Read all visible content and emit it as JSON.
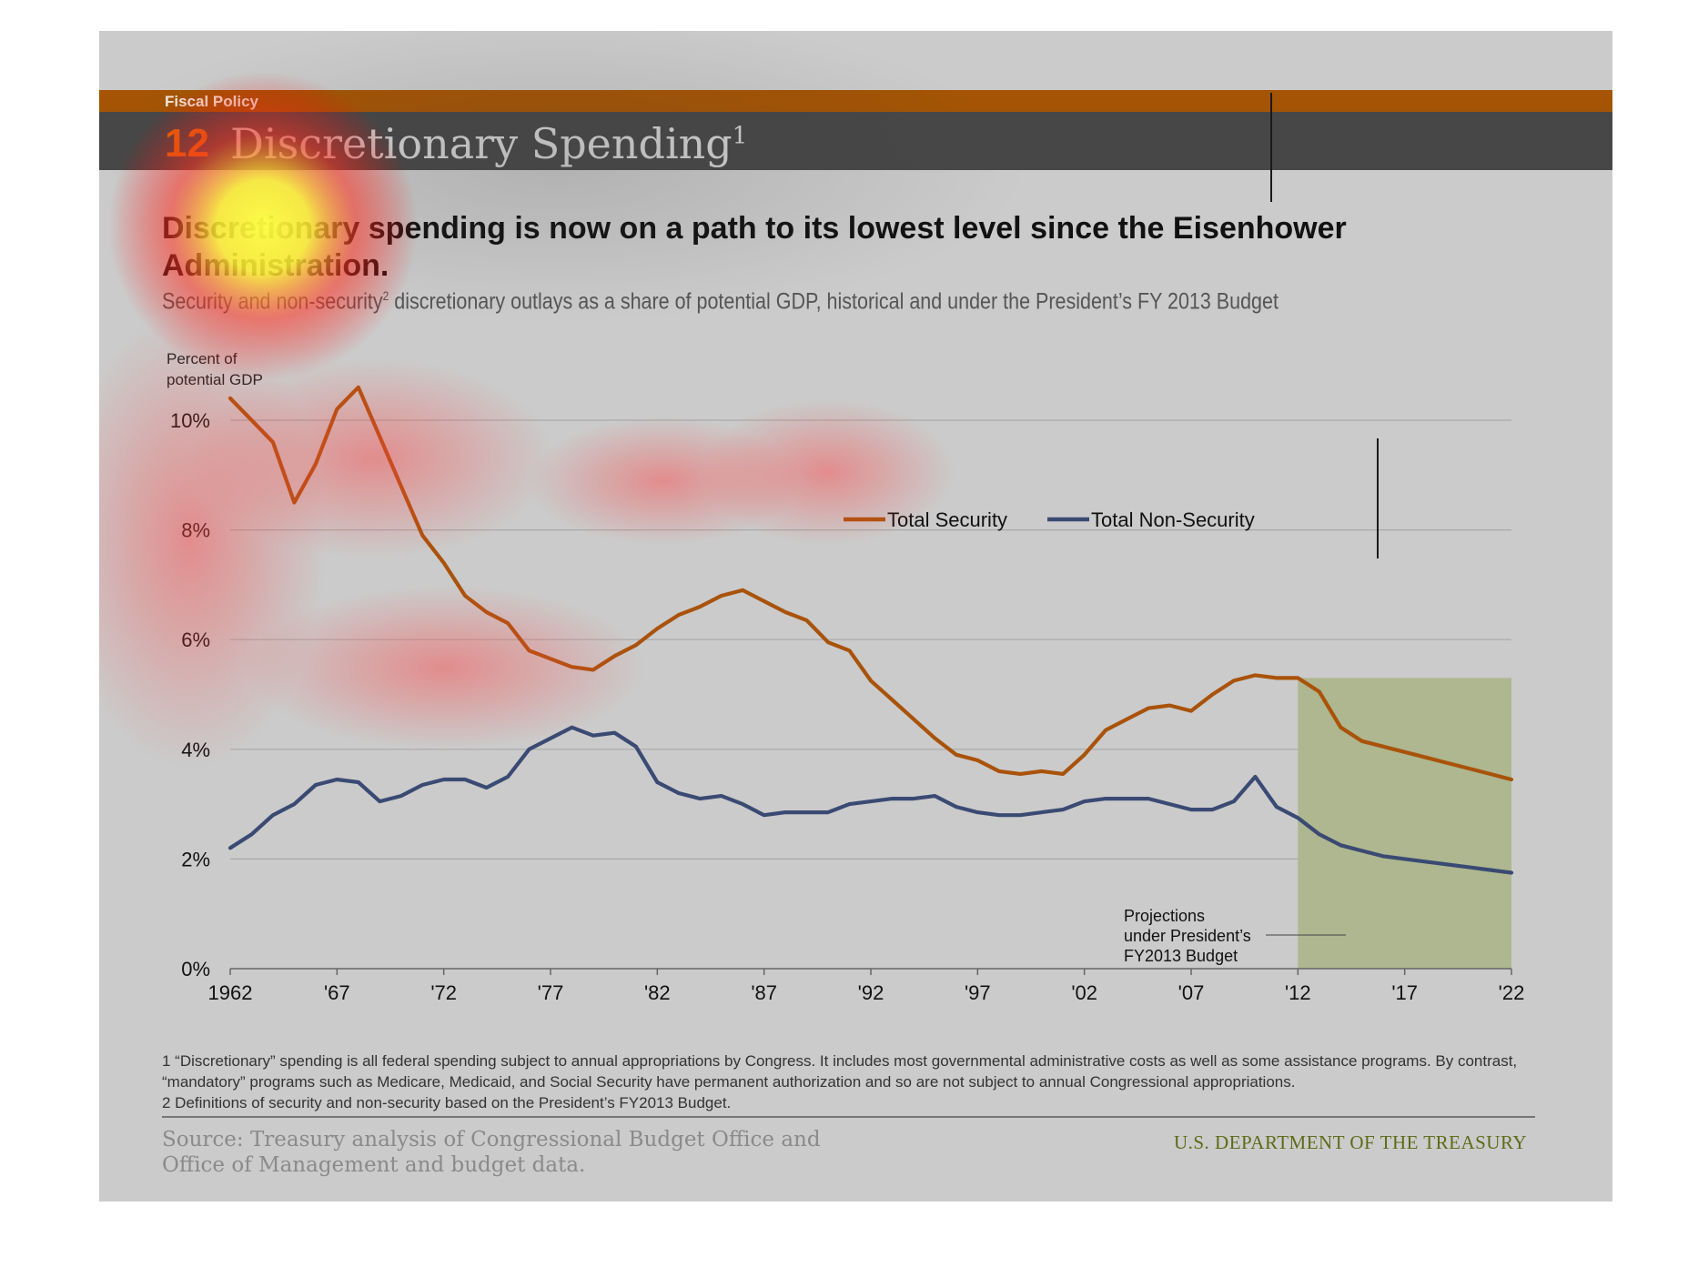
{
  "header": {
    "category": "Fiscal Policy",
    "chart_number": "12",
    "title": "Discretionary Spending",
    "title_footnote_mark": "1"
  },
  "headline": "Discretionary spending is now on a path to its lowest level since the Eisenhower Administration.",
  "subhead": {
    "before": "Security and non-security",
    "mark": "2",
    "after": " discretionary outlays as a share of potential GDP, historical and under the President’s FY 2013 Budget"
  },
  "footnotes": [
    "1 “Discretionary” spending is all federal spending subject to annual appropriations by Congress. It includes most governmental administrative costs as well as some assistance programs. By contrast, “mandatory” programs such as Medicare, Medicaid, and Social Security have permanent authorization and so are not subject to annual Congressional appropriations.",
    "2 Definitions of security and non-security based on the President’s FY2013 Budget."
  ],
  "source": "Source: Treasury analysis of Congressional Budget Office and Office of Management and budget data.",
  "agency": "U.S. DEPARTMENT OF THE TREASURY",
  "colors": {
    "security": "#a9530a",
    "non_security": "#3a4a73",
    "projection_shade": "#aeb78f",
    "orange_bar": "#a45404",
    "title_bar": "#474747"
  },
  "chart_data": {
    "type": "line",
    "ylabel": "Percent of\npotential GDP",
    "ylim": [
      0,
      10
    ],
    "xlim": [
      1962,
      2022
    ],
    "yticks": [
      0,
      2,
      4,
      6,
      8,
      10
    ],
    "ytick_labels": [
      "0%",
      "2%",
      "4%",
      "6%",
      "8%",
      "10%"
    ],
    "xticks": [
      1962,
      1967,
      1972,
      1977,
      1982,
      1987,
      1992,
      1997,
      2002,
      2007,
      2012,
      2017,
      2022
    ],
    "xtick_labels": [
      "1962",
      "'67",
      "'72",
      "'77",
      "'82",
      "'87",
      "'92",
      "'97",
      "'02",
      "'07",
      "'12",
      "'17",
      "'22"
    ],
    "grid": true,
    "legend_position": "top-center",
    "projection": {
      "start": 2012,
      "end": 2022,
      "label": [
        "Projections",
        "under President’s",
        "FY2013 Budget"
      ]
    },
    "x": [
      1962,
      1963,
      1964,
      1965,
      1966,
      1967,
      1968,
      1969,
      1970,
      1971,
      1972,
      1973,
      1974,
      1975,
      1976,
      1977,
      1978,
      1979,
      1980,
      1981,
      1982,
      1983,
      1984,
      1985,
      1986,
      1987,
      1988,
      1989,
      1990,
      1991,
      1992,
      1993,
      1994,
      1995,
      1996,
      1997,
      1998,
      1999,
      2000,
      2001,
      2002,
      2003,
      2004,
      2005,
      2006,
      2007,
      2008,
      2009,
      2010,
      2011,
      2012,
      2013,
      2014,
      2015,
      2016,
      2017,
      2018,
      2019,
      2020,
      2021,
      2022
    ],
    "series": [
      {
        "name": "Total Security",
        "values": [
          10.4,
          10.0,
          9.6,
          8.5,
          9.2,
          10.2,
          10.6,
          9.7,
          8.8,
          7.9,
          7.4,
          6.8,
          6.5,
          6.3,
          5.8,
          5.65,
          5.5,
          5.45,
          5.7,
          5.9,
          6.2,
          6.45,
          6.6,
          6.8,
          6.9,
          6.7,
          6.5,
          6.35,
          5.95,
          5.8,
          5.25,
          4.9,
          4.55,
          4.2,
          3.9,
          3.8,
          3.6,
          3.55,
          3.6,
          3.55,
          3.9,
          4.35,
          4.55,
          4.75,
          4.8,
          4.7,
          5.0,
          5.25,
          5.35,
          5.3,
          5.3,
          5.05,
          4.4,
          4.15,
          4.05,
          3.95,
          3.85,
          3.75,
          3.65,
          3.55,
          3.45
        ]
      },
      {
        "name": "Total Non-Security",
        "values": [
          2.2,
          2.45,
          2.8,
          3.0,
          3.35,
          3.45,
          3.4,
          3.05,
          3.15,
          3.35,
          3.45,
          3.45,
          3.3,
          3.5,
          4.0,
          4.2,
          4.4,
          4.25,
          4.3,
          4.05,
          3.4,
          3.2,
          3.1,
          3.15,
          3.0,
          2.8,
          2.85,
          2.85,
          2.85,
          3.0,
          3.05,
          3.1,
          3.1,
          3.15,
          2.95,
          2.85,
          2.8,
          2.8,
          2.85,
          2.9,
          3.05,
          3.1,
          3.1,
          3.1,
          3.0,
          2.9,
          2.9,
          3.05,
          3.5,
          2.95,
          2.75,
          2.45,
          2.25,
          2.15,
          2.05,
          2.0,
          1.95,
          1.9,
          1.85,
          1.8,
          1.75
        ]
      }
    ]
  }
}
